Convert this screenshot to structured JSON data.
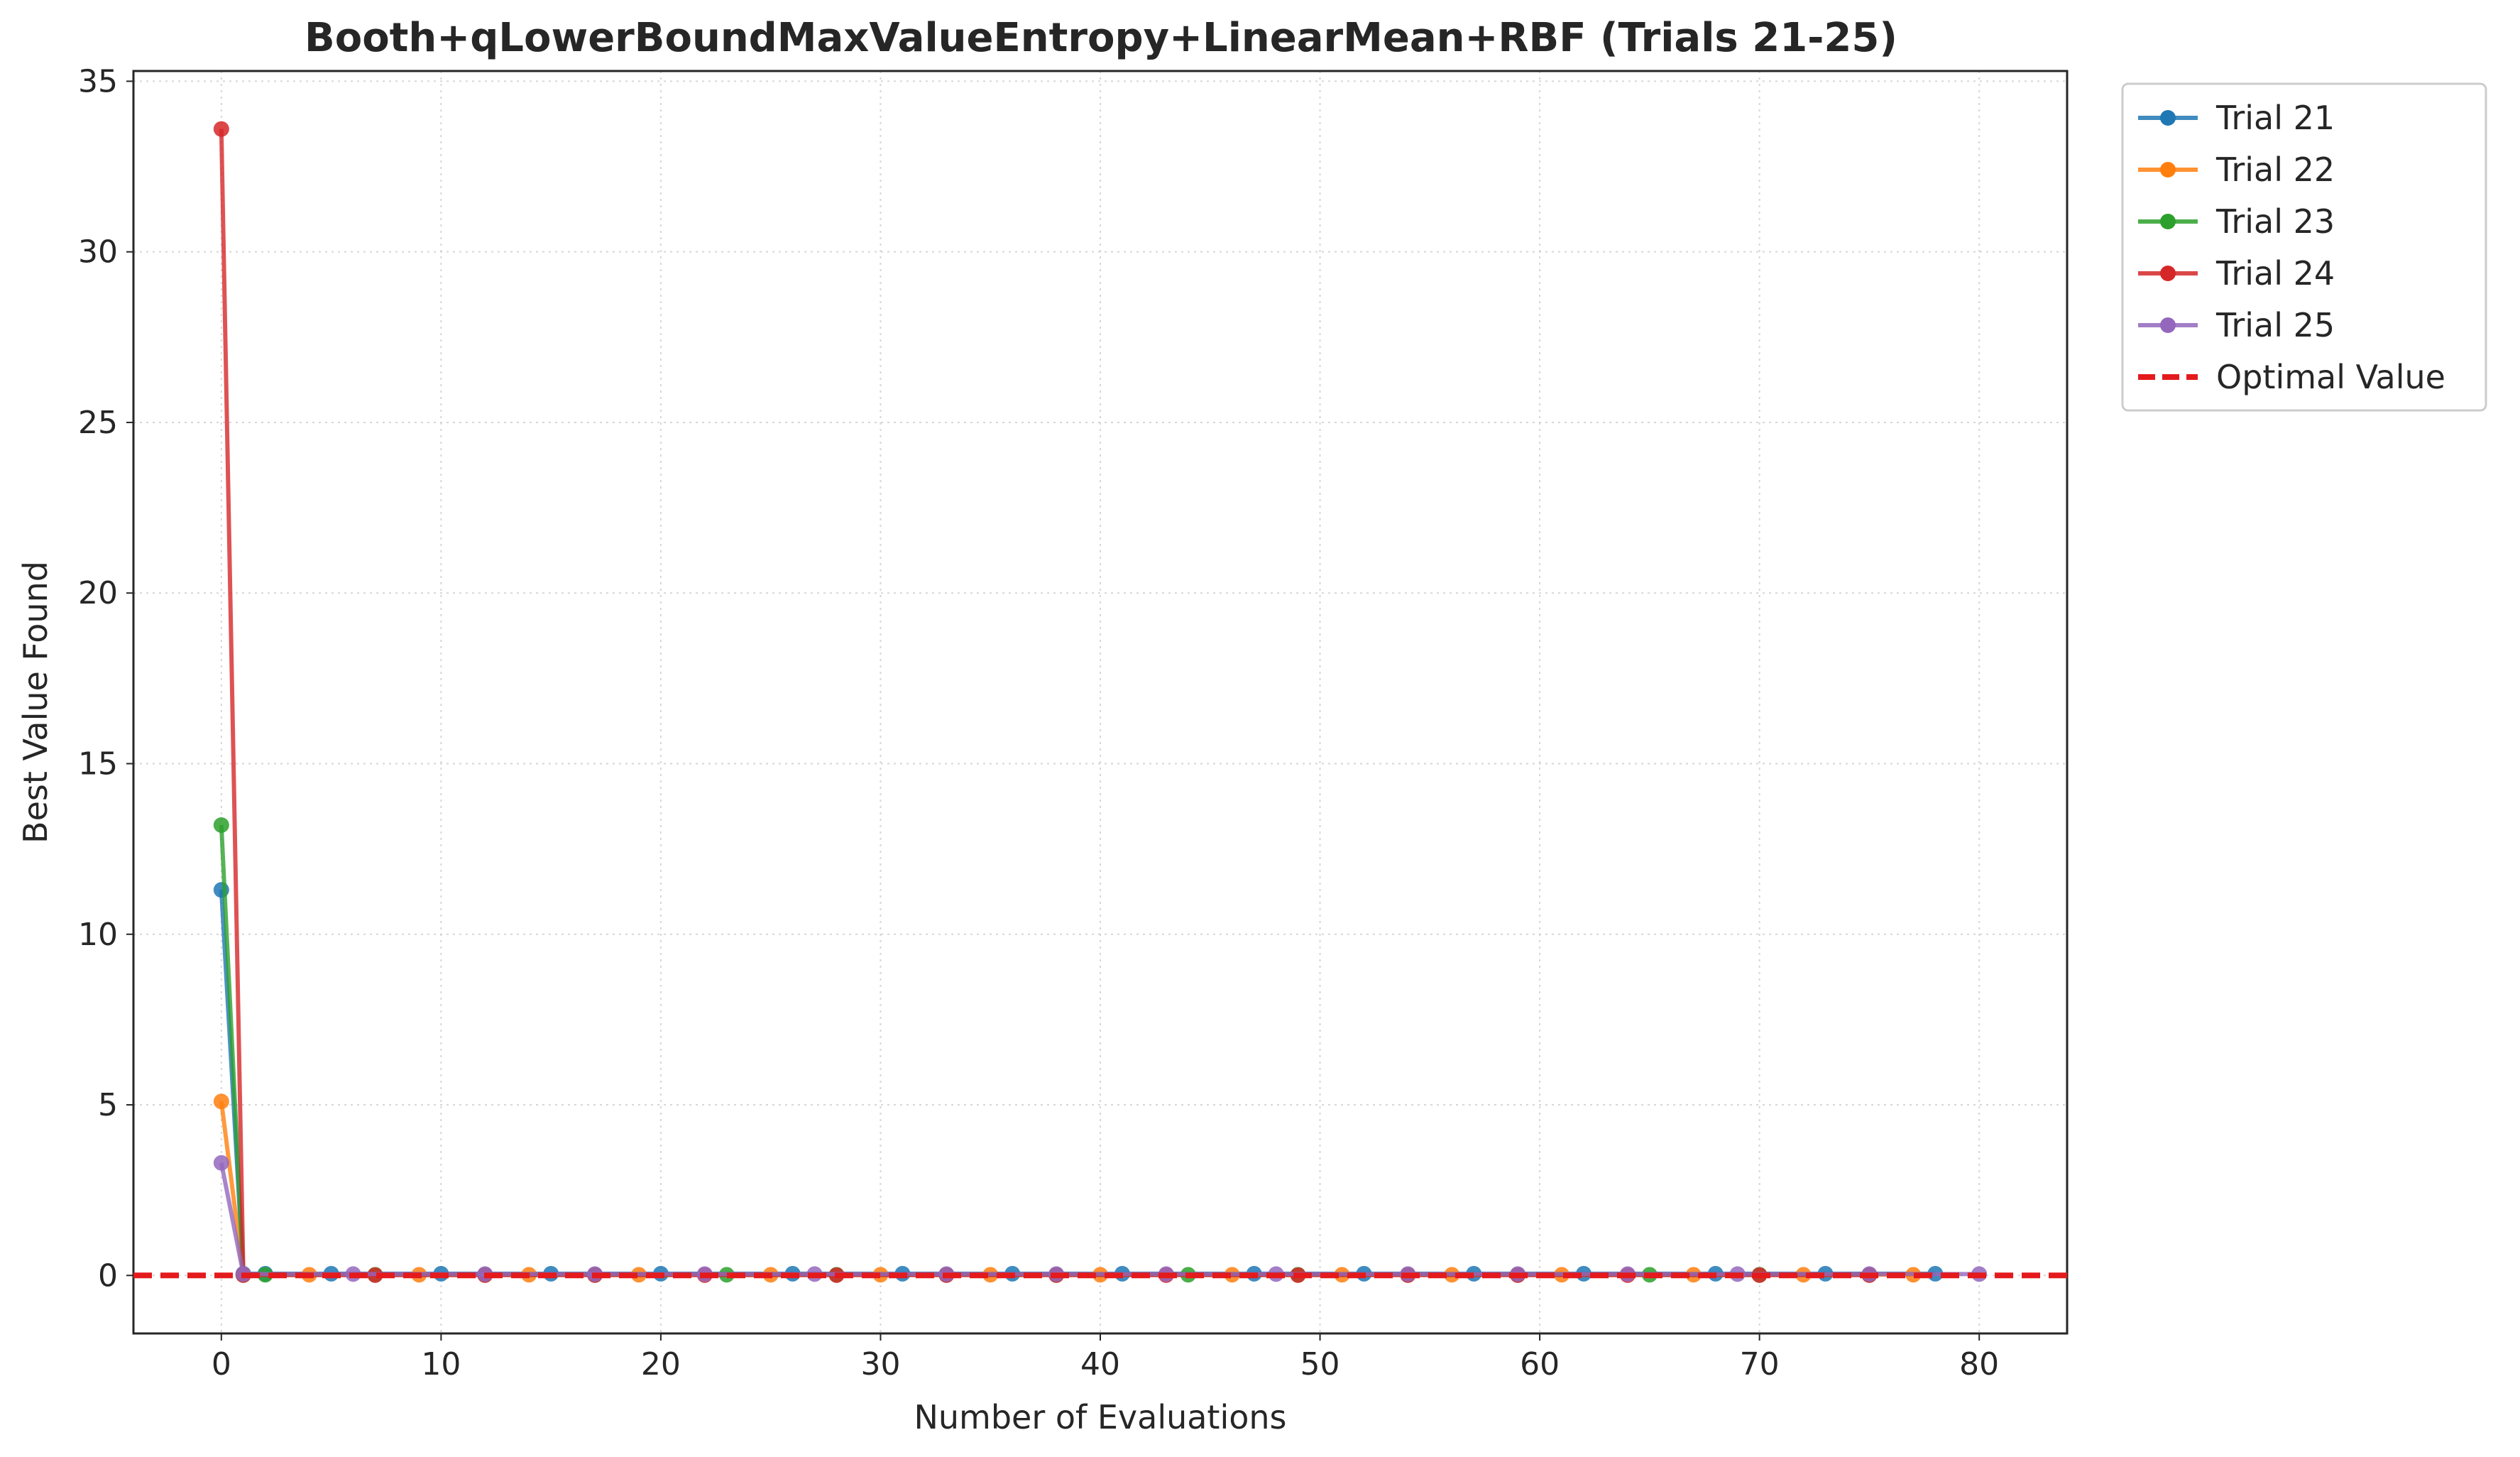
{
  "chart_data": {
    "type": "line",
    "title": "Booth+qLowerBoundMaxValueEntropy+LinearMean+RBF (Trials 21-25)",
    "xlabel": "Number of Evaluations",
    "ylabel": "Best Value Found",
    "xlim": [
      -4,
      84
    ],
    "ylim": [
      -1.7,
      35.3
    ],
    "xticks": [
      0,
      10,
      20,
      30,
      40,
      50,
      60,
      70,
      80
    ],
    "yticks": [
      0,
      5,
      10,
      15,
      20,
      25,
      30,
      35
    ],
    "grid": true,
    "legend_position": "outside-top-right",
    "optimal_value": {
      "name": "Optimal Value",
      "value": 0,
      "color": "#e41a1c",
      "style": "dashed"
    },
    "series": [
      {
        "name": "Trial 21",
        "color": "#1f77b4",
        "x": [
          0,
          1,
          2,
          5,
          10,
          15,
          20,
          26,
          31,
          36,
          41,
          47,
          52,
          57,
          62,
          68,
          73,
          78
        ],
        "y": [
          11.3,
          0.05,
          0.05,
          0.05,
          0.05,
          0.05,
          0.05,
          0.05,
          0.05,
          0.05,
          0.05,
          0.05,
          0.05,
          0.05,
          0.05,
          0.05,
          0.05,
          0.05
        ]
      },
      {
        "name": "Trial 22",
        "color": "#ff7f0e",
        "x": [
          0,
          1,
          4,
          9,
          14,
          19,
          25,
          30,
          35,
          40,
          46,
          51,
          56,
          61,
          67,
          72,
          77
        ],
        "y": [
          5.1,
          0.02,
          0.02,
          0.02,
          0.02,
          0.02,
          0.02,
          0.02,
          0.02,
          0.02,
          0.02,
          0.02,
          0.02,
          0.02,
          0.02,
          0.02,
          0.02
        ]
      },
      {
        "name": "Trial 23",
        "color": "#2ca02c",
        "x": [
          0,
          1,
          2,
          7,
          12,
          17,
          23,
          28,
          33,
          38,
          44,
          49,
          54,
          59,
          65,
          70,
          75
        ],
        "y": [
          13.2,
          0.02,
          0.02,
          0.02,
          0.02,
          0.02,
          0.02,
          0.02,
          0.02,
          0.02,
          0.02,
          0.02,
          0.02,
          0.02,
          0.02,
          0.02,
          0.02
        ]
      },
      {
        "name": "Trial 24",
        "color": "#d62728",
        "x": [
          0,
          1,
          7,
          12,
          17,
          22,
          28,
          33,
          38,
          43,
          49,
          54,
          59,
          64,
          70,
          75
        ],
        "y": [
          33.6,
          0.01,
          0.01,
          0.01,
          0.01,
          0.01,
          0.01,
          0.01,
          0.01,
          0.01,
          0.01,
          0.01,
          0.01,
          0.01,
          0.01,
          0.01
        ]
      },
      {
        "name": "Trial 25",
        "color": "#9467bd",
        "x": [
          0,
          1,
          6,
          12,
          17,
          22,
          27,
          33,
          38,
          43,
          48,
          54,
          59,
          64,
          69,
          75,
          80
        ],
        "y": [
          3.3,
          0.04,
          0.04,
          0.04,
          0.04,
          0.04,
          0.04,
          0.04,
          0.04,
          0.04,
          0.04,
          0.04,
          0.04,
          0.04,
          0.04,
          0.04,
          0.04
        ]
      }
    ]
  }
}
